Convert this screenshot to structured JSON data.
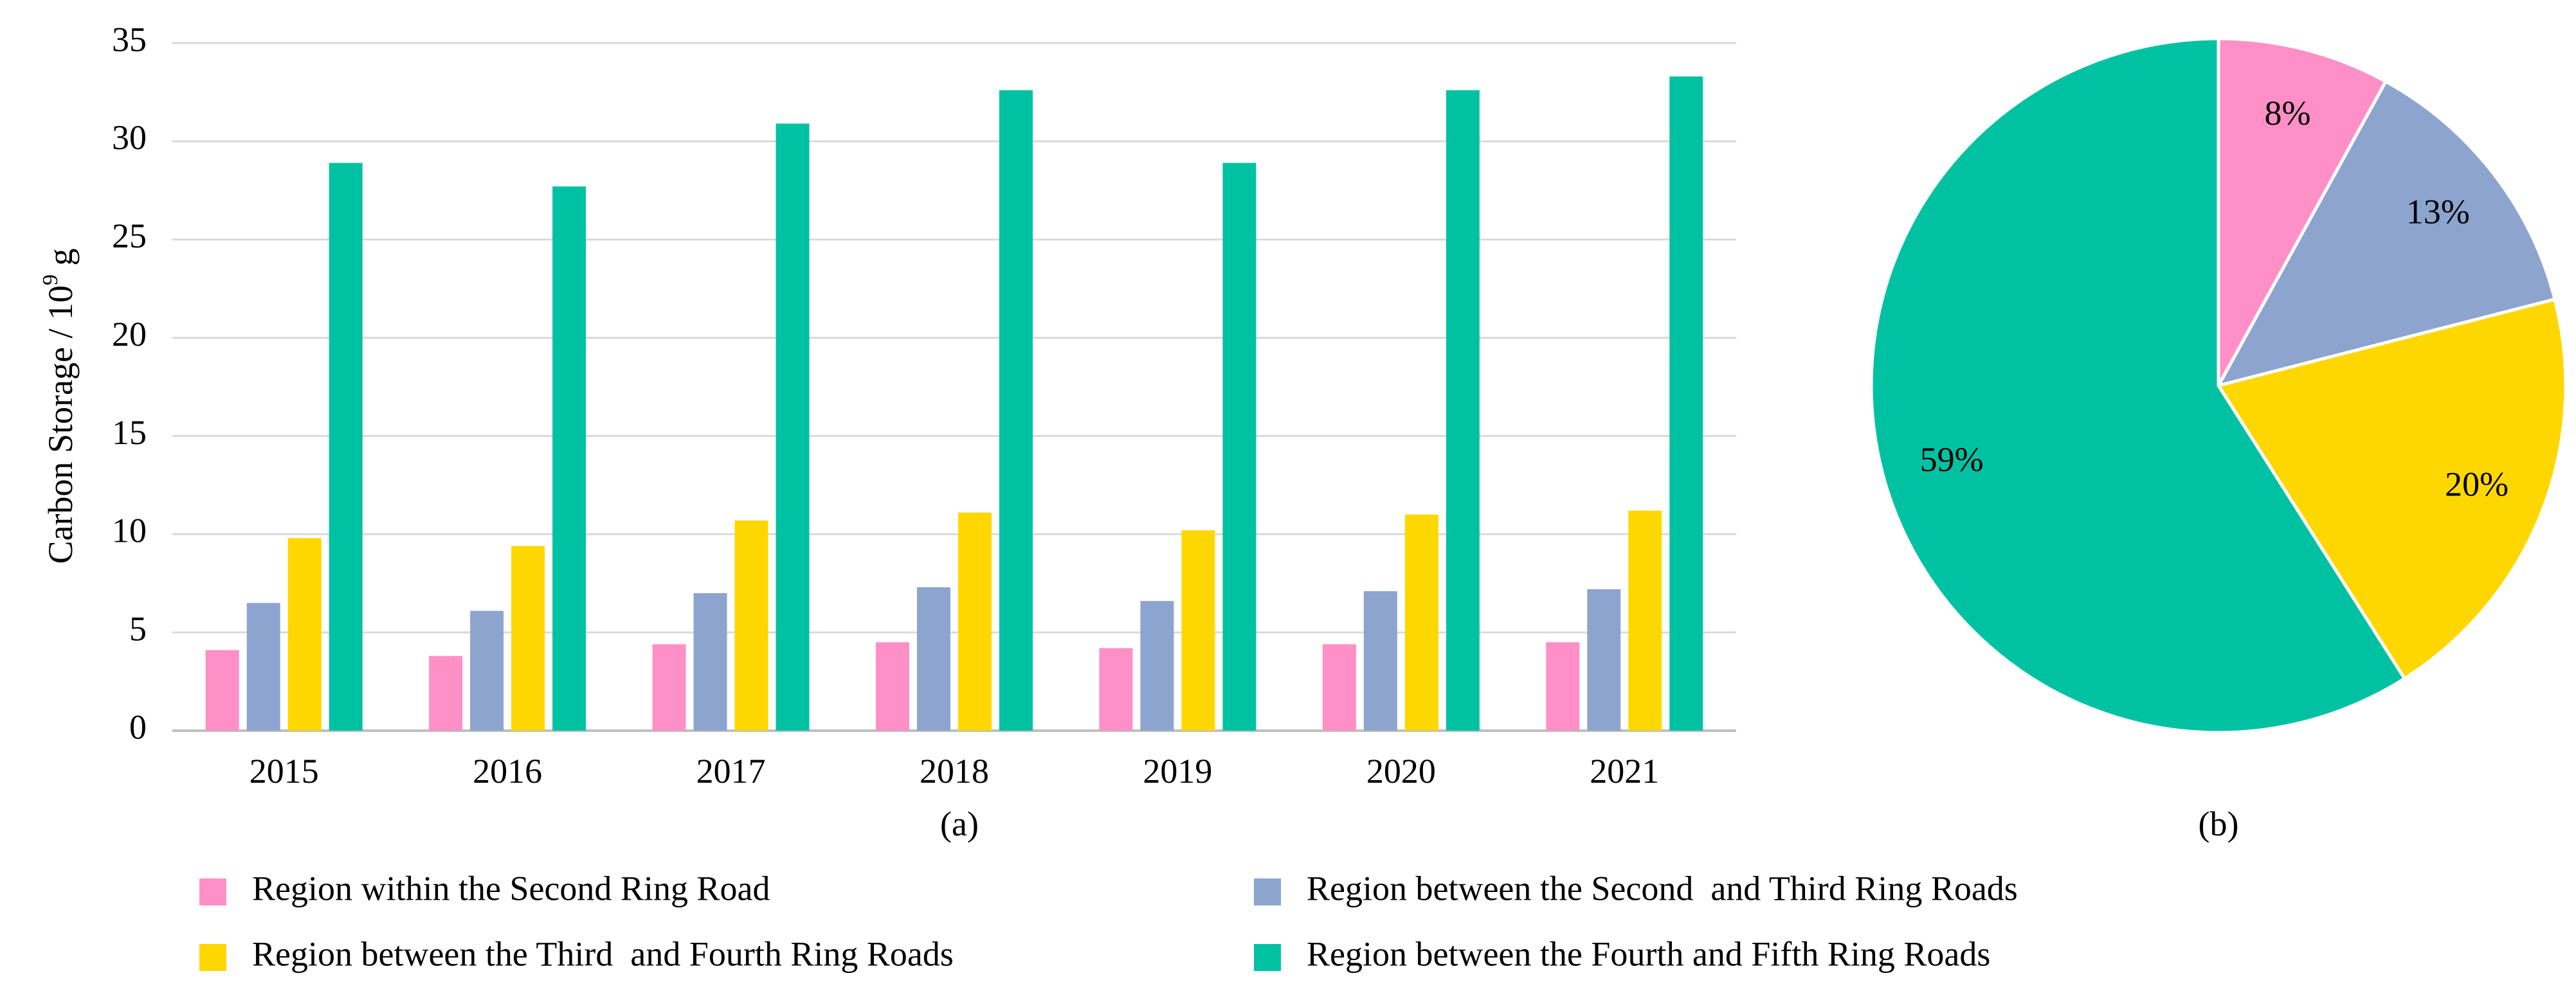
{
  "chart_data": [
    {
      "type": "bar",
      "panel_label": "(a)",
      "categories": [
        "2015",
        "2016",
        "2017",
        "2018",
        "2019",
        "2020",
        "2021"
      ],
      "ylabel_main": "Carbon Storage / 10",
      "ylabel_exp": "9",
      "ylabel_unit": " g",
      "ylim": [
        0,
        35
      ],
      "yticks": [
        "0",
        "5",
        "10",
        "15",
        "20",
        "25",
        "30",
        "35"
      ],
      "ytick_values": [
        0,
        5,
        10,
        15,
        20,
        25,
        30,
        35
      ],
      "grid": true,
      "legend_position": "bottom",
      "series": [
        {
          "name": "Region within the Second Ring Road",
          "color": "#FF8FC7",
          "values": [
            4.1,
            3.8,
            4.4,
            4.5,
            4.2,
            4.4,
            4.5
          ]
        },
        {
          "name": "Region between the Second  and Third Ring Roads",
          "color": "#8DA4CE",
          "values": [
            6.5,
            6.1,
            7.0,
            7.3,
            6.6,
            7.1,
            7.2
          ]
        },
        {
          "name": "Region between the Third  and Fourth Ring Roads",
          "color": "#FFD700",
          "values": [
            9.8,
            9.4,
            10.7,
            11.1,
            10.2,
            11.0,
            11.2
          ]
        },
        {
          "name": "Region between the Fourth and Fifth Ring Roads",
          "color": "#00C2A3",
          "values": [
            28.9,
            27.7,
            30.9,
            32.6,
            28.9,
            32.6,
            33.3
          ]
        }
      ]
    },
    {
      "type": "pie",
      "panel_label": "(b)",
      "slices": [
        {
          "label": "8%",
          "value": 8,
          "color": "#FF8FC7"
        },
        {
          "label": "13%",
          "value": 13,
          "color": "#8DA4CE"
        },
        {
          "label": "20%",
          "value": 20,
          "color": "#FFD700"
        },
        {
          "label": "59%",
          "value": 59,
          "color": "#00C2A3"
        }
      ]
    }
  ]
}
